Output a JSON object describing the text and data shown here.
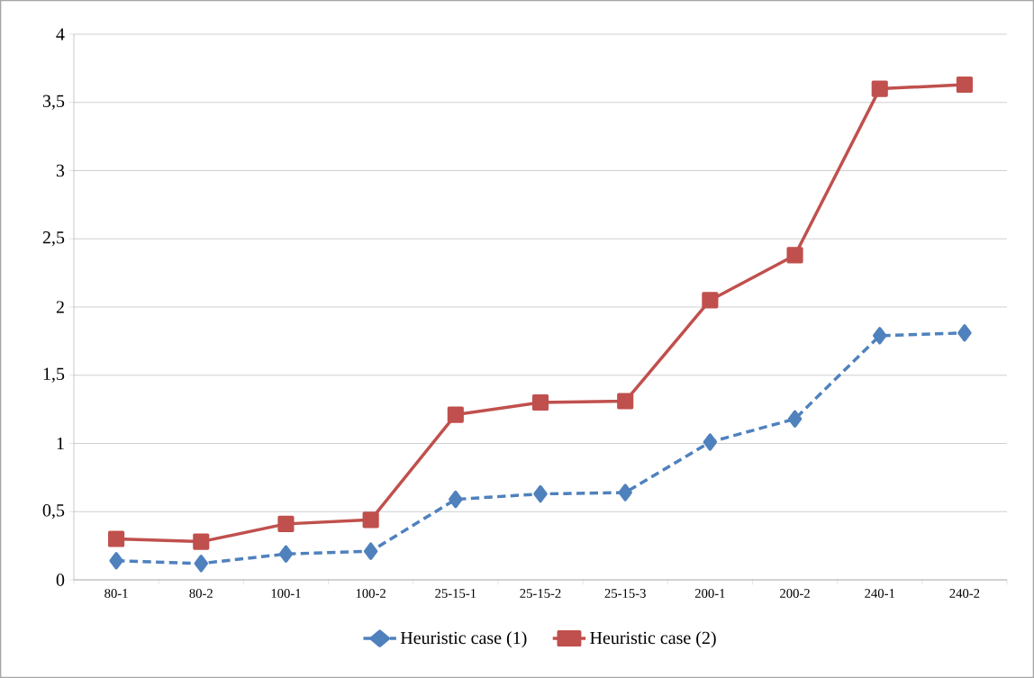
{
  "chart_data": {
    "type": "line",
    "categories": [
      "80-1",
      "80-2",
      "100-1",
      "100-2",
      "25-15-1",
      "25-15-2",
      "25-15-3",
      "200-1",
      "200-2",
      "240-1",
      "240-2"
    ],
    "series": [
      {
        "name": "Heuristic case (1)",
        "color": "#4f81bd",
        "marker": "diamond",
        "line_style": "dashed",
        "values": [
          0.14,
          0.12,
          0.19,
          0.21,
          0.59,
          0.63,
          0.64,
          1.01,
          1.18,
          1.79,
          1.81
        ]
      },
      {
        "name": "Heuristic case (2)",
        "color": "#c0504d",
        "marker": "square",
        "line_style": "solid",
        "values": [
          0.3,
          0.28,
          0.41,
          0.44,
          1.21,
          1.3,
          1.31,
          2.05,
          2.38,
          3.6,
          3.63
        ]
      }
    ],
    "ylim": [
      0,
      4
    ],
    "yticks": [
      0,
      {
        "value": 0.5,
        "label": "0,5"
      },
      1,
      {
        "value": 1.5,
        "label": "1,5"
      },
      2,
      {
        "value": 2.5,
        "label": "2,5"
      },
      3,
      {
        "value": 3.5,
        "label": "3,5"
      },
      4
    ],
    "grid": "y",
    "legend": "bottom"
  }
}
